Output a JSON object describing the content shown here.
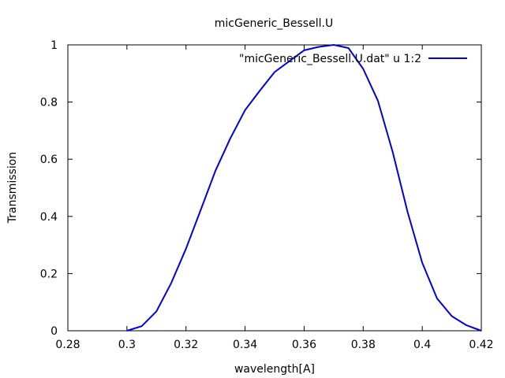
{
  "chart_data": {
    "type": "line",
    "title": "micGeneric_Bessell.U",
    "xlabel": "wavelength[A]",
    "ylabel": "Transmission",
    "xlim": [
      0.28,
      0.42
    ],
    "ylim": [
      0,
      1
    ],
    "x_ticks": [
      "0.28",
      "0.3",
      "0.32",
      "0.34",
      "0.36",
      "0.38",
      "0.4",
      "0.42"
    ],
    "y_ticks": [
      "0",
      "0.2",
      "0.4",
      "0.6",
      "0.8",
      "1"
    ],
    "grid": false,
    "legend_position": "top-right",
    "series": [
      {
        "name": "\"micGeneric_Bessell.U.dat\" u 1:2",
        "color": "#0000dd",
        "x": [
          0.3,
          0.305,
          0.31,
          0.315,
          0.32,
          0.325,
          0.33,
          0.335,
          0.34,
          0.345,
          0.35,
          0.355,
          0.36,
          0.365,
          0.37,
          0.375,
          0.38,
          0.385,
          0.39,
          0.395,
          0.4,
          0.405,
          0.41,
          0.415,
          0.42
        ],
        "y": [
          0.0,
          0.016,
          0.068,
          0.167,
          0.287,
          0.423,
          0.56,
          0.673,
          0.772,
          0.84,
          0.905,
          0.943,
          0.981,
          0.993,
          1.0,
          0.989,
          0.916,
          0.804,
          0.625,
          0.417,
          0.238,
          0.113,
          0.051,
          0.019,
          0.0
        ]
      }
    ]
  }
}
